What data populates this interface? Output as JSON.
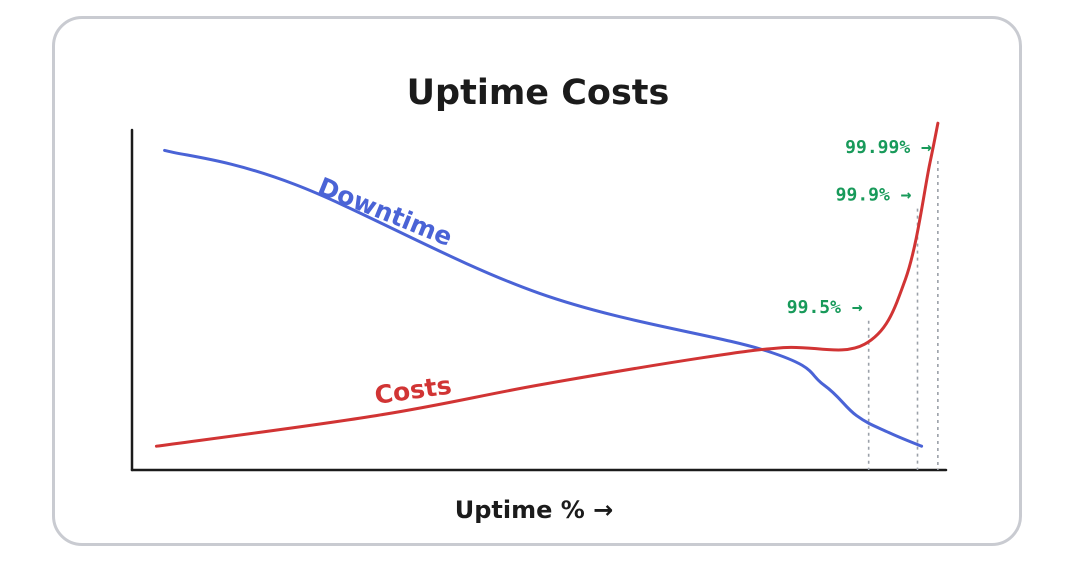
{
  "chart_data": {
    "type": "line",
    "title": "Uptime Costs",
    "xlabel": "Uptime % →",
    "ylabel": "",
    "x_axis": "uptime percentage (qualitative)",
    "grid": false,
    "series": [
      {
        "name": "Downtime",
        "color": "#4a63d6",
        "points": [
          [
            0.04,
            0.94
          ],
          [
            0.2,
            0.84
          ],
          [
            0.5,
            0.52
          ],
          [
            0.78,
            0.35
          ],
          [
            0.85,
            0.25
          ],
          [
            0.89,
            0.16
          ],
          [
            0.93,
            0.11
          ],
          [
            0.97,
            0.07
          ]
        ]
      },
      {
        "name": "Costs",
        "color": "#d13434",
        "points": [
          [
            0.03,
            0.07
          ],
          [
            0.3,
            0.16
          ],
          [
            0.5,
            0.25
          ],
          [
            0.7,
            0.33
          ],
          [
            0.8,
            0.36
          ],
          [
            0.9,
            0.37
          ],
          [
            0.95,
            0.56
          ],
          [
            0.98,
            0.9
          ],
          [
            0.99,
            1.02
          ]
        ]
      }
    ],
    "markers": [
      {
        "label": "99.5% →",
        "x": 0.905,
        "y": 0.48
      },
      {
        "label": "99.9% →",
        "x": 0.965,
        "y": 0.81
      },
      {
        "label": "99.99% →",
        "x": 0.99,
        "y": 0.95
      }
    ],
    "marker_color": "#189a5a"
  }
}
